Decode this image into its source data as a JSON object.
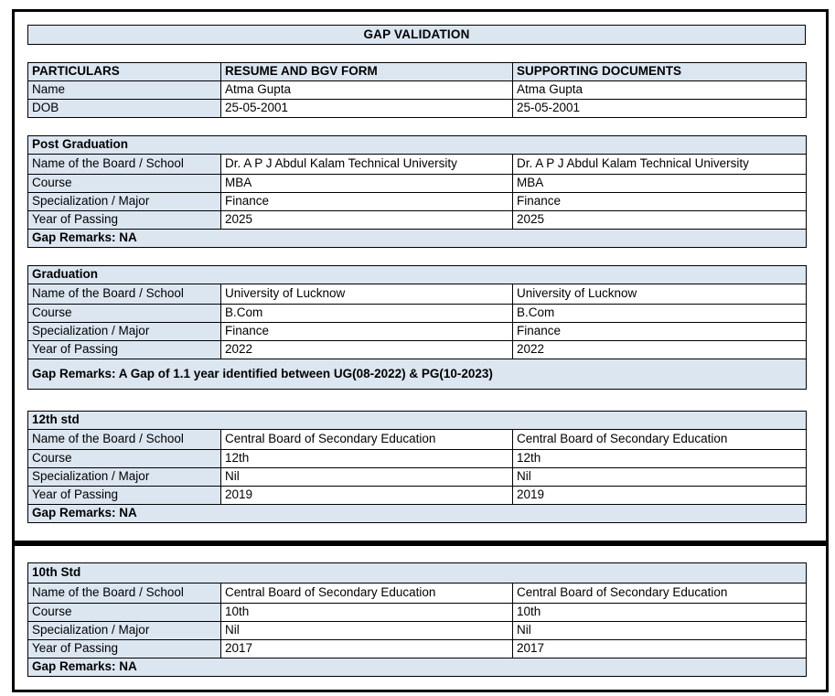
{
  "page": {
    "title": "GAP VALIDATION"
  },
  "colors": {
    "header_fill": "#DCE6F1",
    "border": "#000000",
    "background": "#FFFFFF"
  },
  "particulars_table": {
    "headers": [
      "PARTICULARS",
      "RESUME AND BGV FORM",
      "SUPPORTING DOCUMENTS"
    ],
    "rows": [
      {
        "label": "Name",
        "resume": "Atma Gupta",
        "documents": "Atma Gupta"
      },
      {
        "label": "DOB",
        "resume": "25-05-2001",
        "documents": "25-05-2001"
      }
    ]
  },
  "sections": [
    {
      "title": "Post Graduation",
      "rows": [
        {
          "label": "Name of the Board / School",
          "resume": "Dr. A P J Abdul Kalam Technical University",
          "documents": "Dr. A P J Abdul Kalam Technical University"
        },
        {
          "label": "Course",
          "resume": "MBA",
          "documents": "MBA"
        },
        {
          "label": "Specialization / Major",
          "resume": "Finance",
          "documents": "Finance"
        },
        {
          "label": "Year of Passing",
          "resume": "2025",
          "documents": "2025"
        }
      ],
      "gap_remarks": "Gap Remarks: NA"
    },
    {
      "title": "Graduation",
      "rows": [
        {
          "label": "Name of the Board / School",
          "resume": "University of Lucknow",
          "documents": "University of Lucknow"
        },
        {
          "label": "Course",
          "resume": "B.Com",
          "documents": "B.Com"
        },
        {
          "label": "Specialization / Major",
          "resume": "Finance",
          "documents": "Finance"
        },
        {
          "label": "Year of Passing",
          "resume": "2022",
          "documents": "2022"
        }
      ],
      "gap_remarks": "Gap Remarks: A Gap of 1.1 year identified between UG(08-2022) & PG(10-2023)"
    },
    {
      "title": "12th std",
      "rows": [
        {
          "label": "Name of the Board / School",
          "resume": "Central Board of Secondary Education",
          "documents": "Central Board of Secondary Education"
        },
        {
          "label": "Course",
          "resume": "12th",
          "documents": "12th"
        },
        {
          "label": "Specialization / Major",
          "resume": "Nil",
          "documents": "Nil"
        },
        {
          "label": "Year of Passing",
          "resume": "2019",
          "documents": "2019"
        }
      ],
      "gap_remarks": "Gap Remarks: NA"
    },
    {
      "title": "10th Std",
      "rows": [
        {
          "label": "Name of the Board / School",
          "resume": "Central Board of Secondary Education",
          "documents": "Central Board of Secondary Education"
        },
        {
          "label": "Course",
          "resume": "10th",
          "documents": "10th"
        },
        {
          "label": "Specialization / Major",
          "resume": "Nil",
          "documents": "Nil"
        },
        {
          "label": "Year of Passing",
          "resume": "2017",
          "documents": "2017"
        }
      ],
      "gap_remarks": "Gap Remarks: NA"
    }
  ]
}
